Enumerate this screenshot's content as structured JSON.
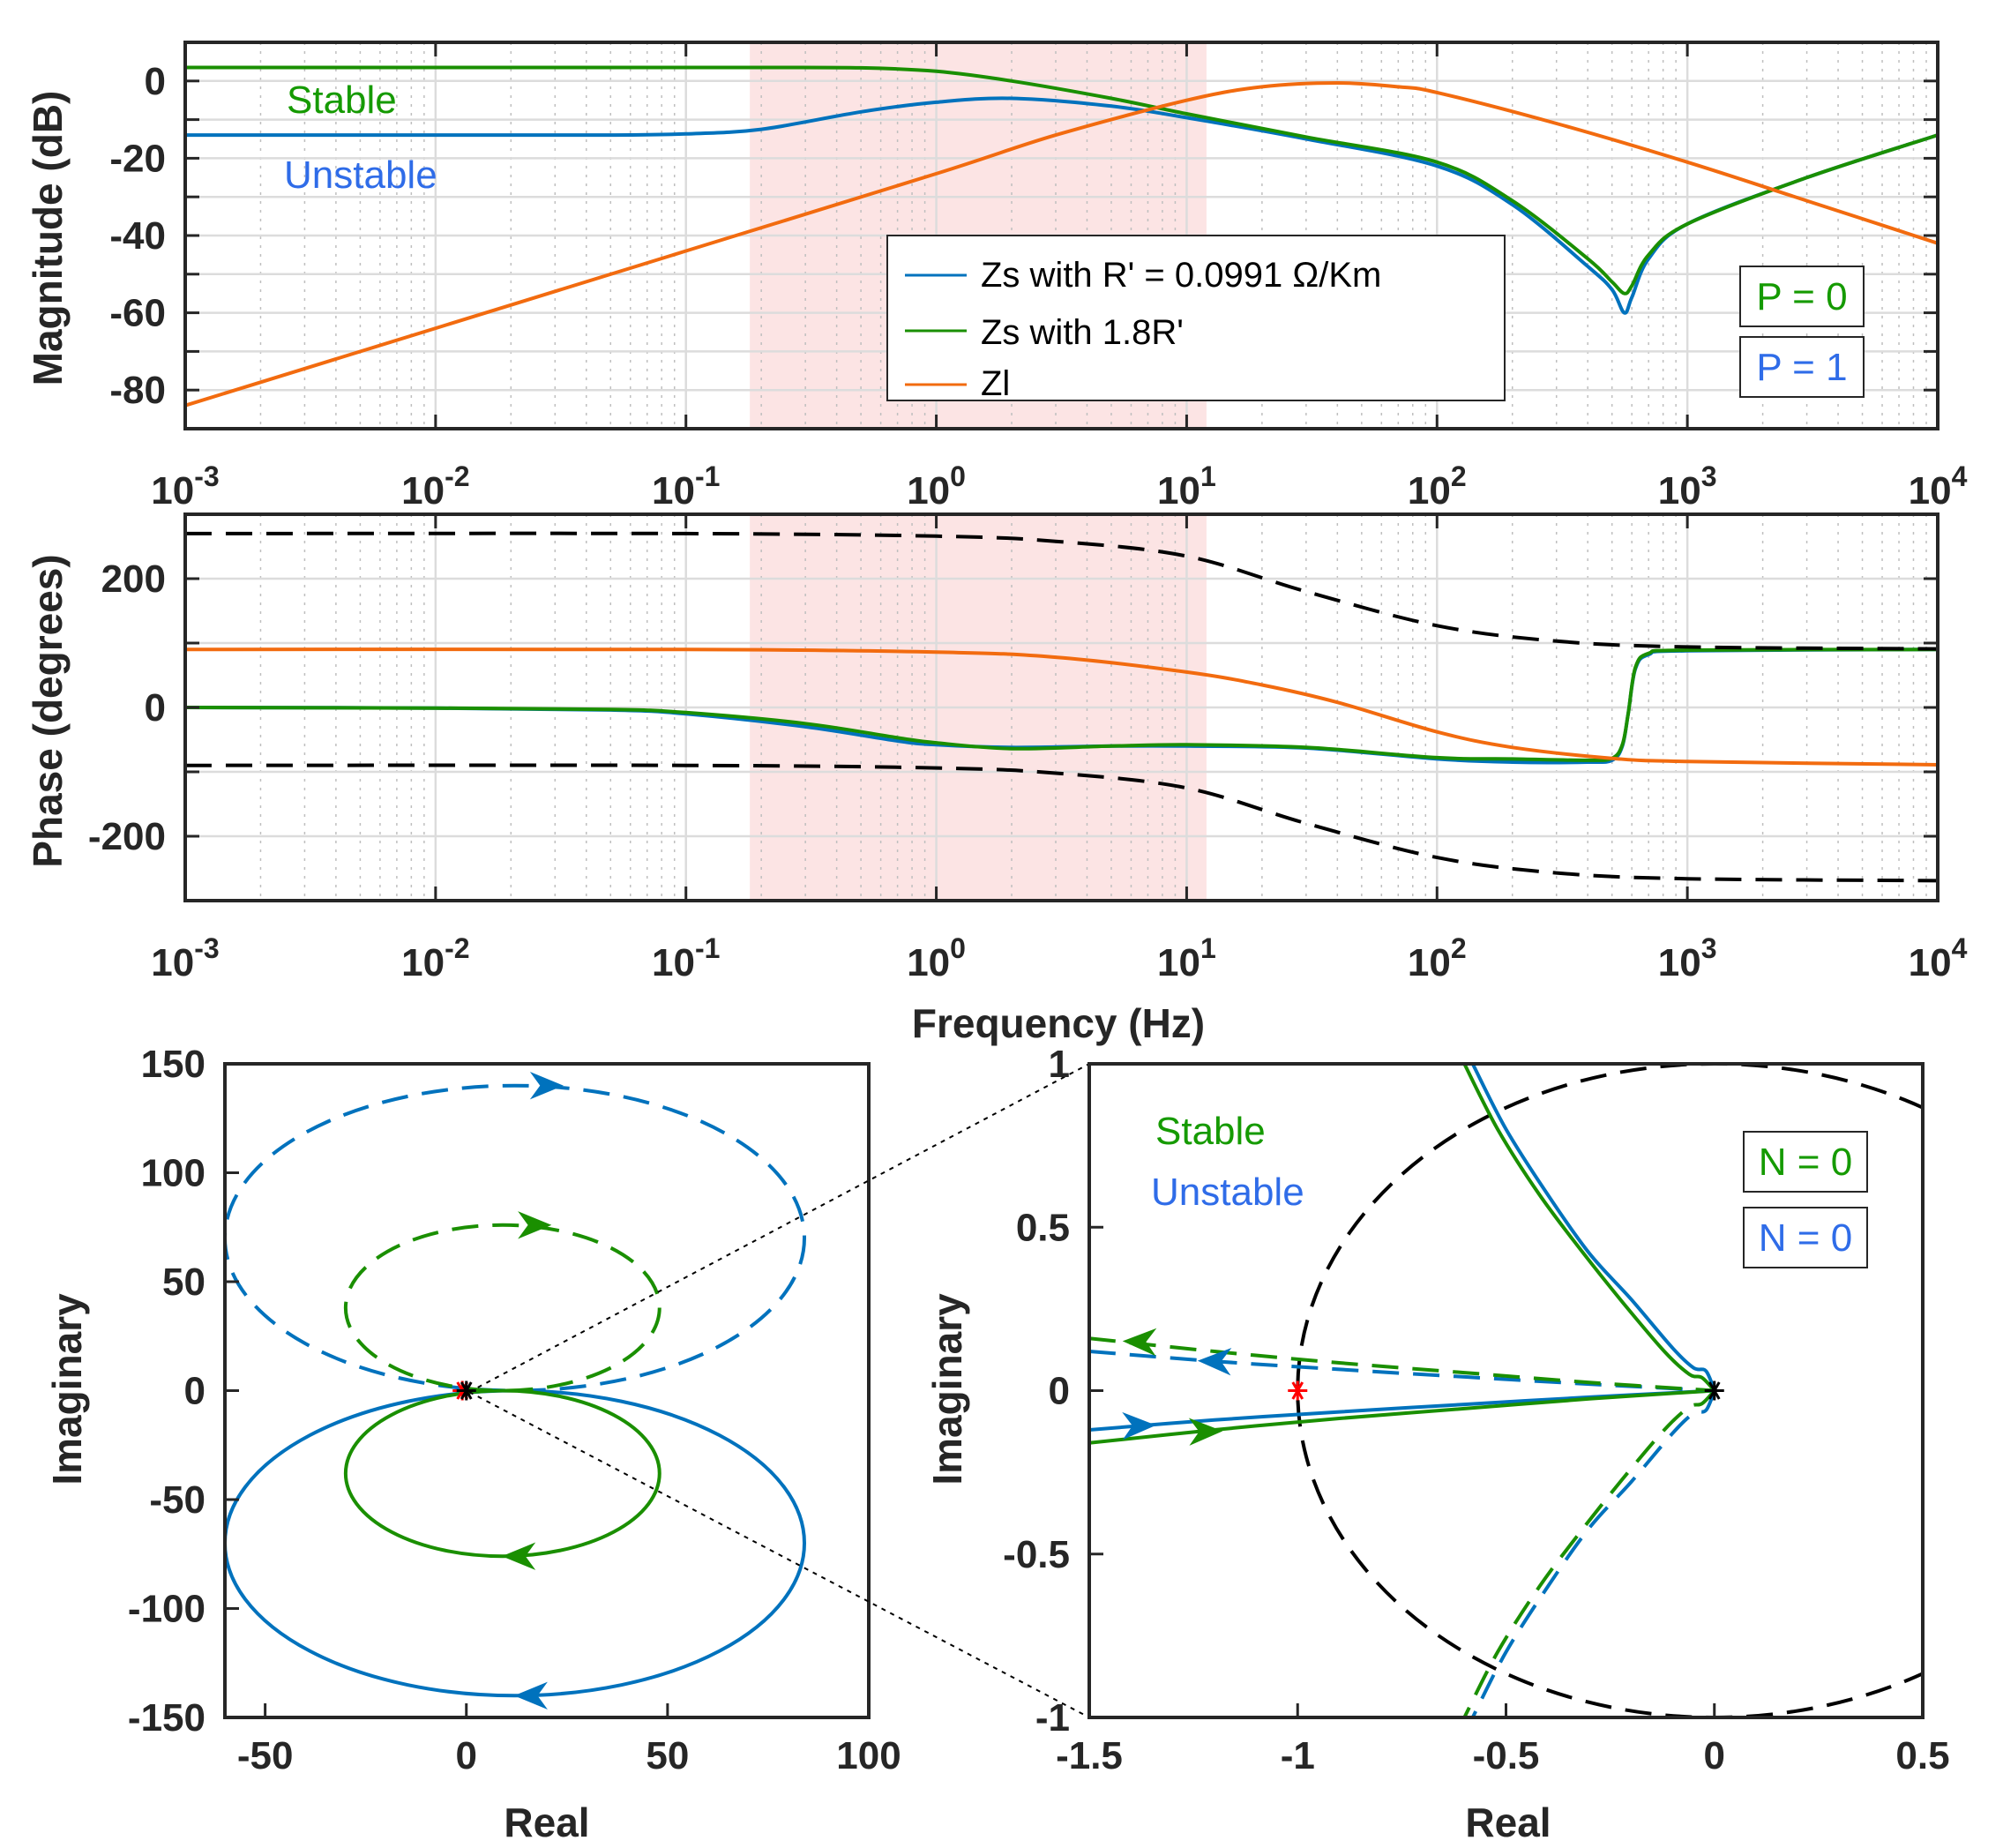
{
  "colors": {
    "blue": "#0072BD",
    "green": "#1A8F00",
    "orange": "#F26B0F",
    "black": "#000000",
    "red": "#FF0000",
    "shade": "#FCE4E4",
    "text_green": "#159A00",
    "text_blue": "#2F6CE8"
  },
  "chart_data": [
    {
      "type": "line",
      "id": "magnitude",
      "xlabel": "",
      "ylabel": "Magnitude (dB)",
      "xscale": "log",
      "xlim": [
        0.001,
        10000
      ],
      "ylim": [
        -90,
        10
      ],
      "yticks": [
        0,
        -20,
        -40,
        -60,
        -80
      ],
      "xtick_labels": [
        {
          "base": "10",
          "exp": "-3"
        },
        {
          "base": "10",
          "exp": "-2"
        },
        {
          "base": "10",
          "exp": "-1"
        },
        {
          "base": "10",
          "exp": "0"
        },
        {
          "base": "10",
          "exp": "1"
        },
        {
          "base": "10",
          "exp": "2"
        },
        {
          "base": "10",
          "exp": "3"
        },
        {
          "base": "10",
          "exp": "4"
        }
      ],
      "shaded_band": [
        0.18,
        12
      ],
      "grid": true,
      "series": [
        {
          "name": "Zs with R' = 0.0991 Ω/Km",
          "color": "blue",
          "x": [
            0.001,
            0.01,
            0.05,
            0.1,
            0.2,
            0.5,
            1,
            2,
            5,
            10,
            30,
            100,
            200,
            400,
            500,
            560,
            600,
            700,
            1000,
            3000,
            10000
          ],
          "y": [
            -14,
            -14,
            -14,
            -13.7,
            -12.5,
            -8,
            -5.5,
            -4.5,
            -6.5,
            -9.5,
            -15,
            -22,
            -32,
            -48,
            -54,
            -60,
            -56,
            -46,
            -37,
            -25,
            -14
          ]
        },
        {
          "name": "Zs with 1.8R'",
          "color": "green",
          "x": [
            0.001,
            0.01,
            0.1,
            0.2,
            0.5,
            1,
            2,
            5,
            10,
            30,
            100,
            200,
            400,
            500,
            560,
            600,
            700,
            1000,
            3000,
            10000
          ],
          "y": [
            3.5,
            3.5,
            3.5,
            3.5,
            3.4,
            2.5,
            0,
            -4.5,
            -8.5,
            -14.5,
            -21,
            -31,
            -46,
            -52,
            -55,
            -53,
            -45,
            -37,
            -25,
            -14
          ]
        },
        {
          "name": "Zl",
          "color": "orange",
          "x": [
            0.001,
            0.01,
            0.1,
            1,
            3,
            10,
            20,
            40,
            70,
            100,
            300,
            1000,
            3000,
            10000
          ],
          "y": [
            -84,
            -64,
            -44,
            -24,
            -14,
            -5,
            -1.5,
            -0.5,
            -1.5,
            -3,
            -11,
            -21,
            -31,
            -42
          ]
        }
      ],
      "legend": [
        "Zs with R' = 0.0991 Ω/Km",
        "Zs with 1.8R'",
        "Zl"
      ],
      "annotations": {
        "stable": "Stable",
        "unstable": "Unstable",
        "p_stable": "P = 0",
        "p_unstable": "P = 1"
      }
    },
    {
      "type": "line",
      "id": "phase",
      "xlabel": "Frequency (Hz)",
      "ylabel": "Phase (degrees)",
      "xscale": "log",
      "xlim": [
        0.001,
        10000
      ],
      "ylim": [
        -300,
        300
      ],
      "yticks": [
        200,
        0,
        -200
      ],
      "shaded_band": [
        0.18,
        12
      ],
      "grid": true,
      "series": [
        {
          "name": "Zs with R' = 0.0991 Ω/Km",
          "color": "blue",
          "x": [
            0.001,
            0.01,
            0.05,
            0.1,
            0.3,
            0.7,
            1,
            2,
            5,
            10,
            30,
            100,
            200,
            400,
            500,
            550,
            580,
            620,
            700,
            1000,
            10000
          ],
          "y": [
            0,
            -1,
            -4,
            -10,
            -30,
            -52,
            -58,
            -62,
            -60,
            -60,
            -63,
            -80,
            -85,
            -85,
            -82,
            -60,
            -10,
            60,
            82,
            88,
            90
          ]
        },
        {
          "name": "Zs with 1.8R'",
          "color": "green",
          "x": [
            0.001,
            0.01,
            0.05,
            0.1,
            0.3,
            0.7,
            1,
            2,
            5,
            10,
            30,
            100,
            200,
            400,
            500,
            550,
            580,
            620,
            700,
            1000,
            10000
          ],
          "y": [
            0,
            -1,
            -3,
            -8,
            -25,
            -47,
            -55,
            -64,
            -60,
            -58,
            -62,
            -78,
            -80,
            -82,
            -79,
            -58,
            -10,
            62,
            84,
            89,
            90
          ]
        },
        {
          "name": "Zl",
          "color": "orange",
          "x": [
            0.001,
            0.1,
            1,
            3,
            10,
            20,
            40,
            100,
            200,
            500,
            1000,
            10000
          ],
          "y": [
            90,
            90,
            86,
            78,
            55,
            35,
            8,
            -38,
            -62,
            -79,
            -84,
            -89
          ]
        },
        {
          "name": "upper bound",
          "color": "black",
          "dashed": true,
          "x": [
            0.001,
            0.1,
            1,
            3,
            10,
            30,
            100,
            300,
            1000,
            10000
          ],
          "y": [
            270,
            270,
            266,
            258,
            235,
            180,
            127,
            103,
            94,
            91
          ]
        },
        {
          "name": "lower bound",
          "color": "black",
          "dashed": true,
          "x": [
            0.001,
            0.1,
            1,
            3,
            10,
            30,
            100,
            300,
            1000,
            10000
          ],
          "y": [
            -90,
            -90,
            -94,
            -102,
            -125,
            -180,
            -233,
            -257,
            -266,
            -269
          ]
        }
      ]
    },
    {
      "type": "line",
      "id": "nyquist",
      "xlabel": "Real",
      "ylabel": "Imaginary",
      "xlim": [
        -60,
        100
      ],
      "ylim": [
        -150,
        150
      ],
      "xticks": [
        -50,
        0,
        50,
        100
      ],
      "yticks": [
        150,
        100,
        50,
        0,
        -50,
        -100,
        -150
      ],
      "series": [
        {
          "name": "unstable positive",
          "color": "blue",
          "shape": "ellipse",
          "cx": 12,
          "cy": -70,
          "rx": 72,
          "ry": 70,
          "dashed": false
        },
        {
          "name": "unstable negative",
          "color": "blue",
          "shape": "ellipse",
          "cx": 12,
          "cy": 70,
          "rx": 72,
          "ry": 70,
          "dashed": true
        },
        {
          "name": "stable positive",
          "color": "green",
          "shape": "ellipse",
          "cx": 9,
          "cy": -38,
          "rx": 39,
          "ry": 38,
          "dashed": false
        },
        {
          "name": "stable negative",
          "color": "green",
          "shape": "ellipse",
          "cx": 9,
          "cy": 38,
          "rx": 39,
          "ry": 38,
          "dashed": true
        }
      ],
      "points": [
        {
          "x": -1,
          "y": 0,
          "marker": "*",
          "color": "red"
        },
        {
          "x": 0,
          "y": 0,
          "marker": "*",
          "color": "black"
        }
      ]
    },
    {
      "type": "line",
      "id": "nyquist-zoom",
      "xlabel": "Real",
      "ylabel": "Imaginary",
      "xlim": [
        -1.5,
        0.5
      ],
      "ylim": [
        -1,
        1
      ],
      "xticks": [
        -1.5,
        -1,
        -0.5,
        0,
        0.5
      ],
      "yticks": [
        1,
        0.5,
        0,
        -0.5,
        -1
      ],
      "unit_circle": true,
      "series": [
        {
          "name": "unstable high-freq",
          "color": "blue",
          "dashed": false,
          "x": [
            -0.58,
            -0.5,
            -0.4,
            -0.3,
            -0.2,
            -0.1,
            -0.05,
            -0.02,
            0
          ],
          "y": [
            1,
            0.8,
            0.6,
            0.42,
            0.28,
            0.13,
            0.07,
            0.06,
            0
          ]
        },
        {
          "name": "stable high-freq",
          "color": "green",
          "dashed": false,
          "x": [
            -0.6,
            -0.52,
            -0.42,
            -0.32,
            -0.22,
            -0.12,
            -0.06,
            -0.03,
            0
          ],
          "y": [
            1,
            0.8,
            0.6,
            0.43,
            0.27,
            0.12,
            0.05,
            0.04,
            0
          ]
        },
        {
          "name": "unstable high-freq mirror",
          "color": "blue",
          "dashed": true,
          "x": [
            0,
            -0.02,
            -0.05,
            -0.1,
            -0.2,
            -0.3,
            -0.4,
            -0.5,
            -0.58
          ],
          "y": [
            0,
            -0.06,
            -0.07,
            -0.13,
            -0.28,
            -0.42,
            -0.6,
            -0.8,
            -1
          ]
        },
        {
          "name": "stable high-freq mirror",
          "color": "green",
          "dashed": true,
          "x": [
            0,
            -0.03,
            -0.06,
            -0.12,
            -0.22,
            -0.32,
            -0.42,
            -0.52,
            -0.6
          ],
          "y": [
            0,
            -0.04,
            -0.05,
            -0.12,
            -0.27,
            -0.43,
            -0.6,
            -0.8,
            -1
          ]
        },
        {
          "name": "unstable low-freq",
          "color": "blue",
          "dashed": false,
          "x": [
            -1.5,
            -1.2,
            -0.9,
            -0.6,
            -0.3,
            0
          ],
          "y": [
            -0.12,
            -0.09,
            -0.065,
            -0.042,
            -0.02,
            0
          ]
        },
        {
          "name": "stable low-freq",
          "color": "green",
          "dashed": false,
          "x": [
            -1.5,
            -1.2,
            -0.9,
            -0.6,
            -0.3,
            0
          ],
          "y": [
            -0.16,
            -0.12,
            -0.085,
            -0.055,
            -0.025,
            0
          ]
        },
        {
          "name": "unstable low-freq mirror",
          "color": "blue",
          "dashed": true,
          "x": [
            -1.5,
            -1.2,
            -0.9,
            -0.6,
            -0.3,
            0
          ],
          "y": [
            0.12,
            0.09,
            0.065,
            0.042,
            0.02,
            0
          ]
        },
        {
          "name": "stable low-freq mirror",
          "color": "green",
          "dashed": true,
          "x": [
            -1.5,
            -1.2,
            -0.9,
            -0.6,
            -0.3,
            0
          ],
          "y": [
            0.16,
            0.12,
            0.085,
            0.055,
            0.025,
            0
          ]
        }
      ],
      "points": [
        {
          "x": -1,
          "y": 0,
          "marker": "*",
          "color": "red"
        },
        {
          "x": 0,
          "y": 0,
          "marker": "*",
          "color": "black"
        }
      ],
      "annotations": {
        "stable": "Stable",
        "unstable": "Unstable",
        "n_stable": "N = 0",
        "n_unstable": "N = 0"
      }
    }
  ]
}
